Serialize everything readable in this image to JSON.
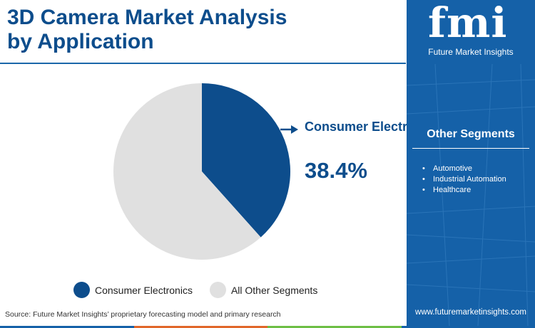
{
  "title": "3D Camera Market Analysis by Application",
  "brand": {
    "logo": "fmi",
    "name": "Future Market Insights",
    "website": "www.futuremarketinsights.com"
  },
  "sidebar": {
    "heading": "Other Segments",
    "items": [
      "Automotive",
      "Industrial Automation",
      "Healthcare"
    ]
  },
  "callout": {
    "label": "Consumer Electronics",
    "value": "38.4%"
  },
  "source": "Source: Future Market Insights’ proprietary forecasting model and primary research",
  "colors": {
    "primary": "#0d4d8c",
    "other": "#e0e0e0",
    "sidebar": "#1561a8",
    "stripe": [
      "#1561a8",
      "#e1672a",
      "#6dbf45",
      "#1561a8"
    ]
  },
  "chart_data": {
    "type": "pie",
    "labels": [
      "Consumer Electronics",
      "All Other Segments"
    ],
    "values": [
      38.4,
      61.6
    ],
    "colors": [
      "#0d4d8c",
      "#e0e0e0"
    ],
    "legend": [
      "Consumer Electronics",
      "All Other Segments"
    ],
    "legend_position": "bottom",
    "data_labels": [
      "38.4%"
    ]
  }
}
